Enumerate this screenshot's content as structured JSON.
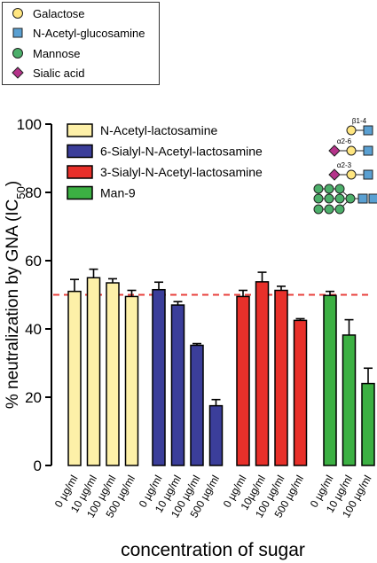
{
  "symbol_legend": [
    {
      "label": "Galactose",
      "shape": "circle",
      "color": "#ffe680"
    },
    {
      "label": "N-Acetyl-glucosamine",
      "shape": "square",
      "color": "#5aa0d2"
    },
    {
      "label": "Mannose",
      "shape": "circle",
      "color": "#4caf6a"
    },
    {
      "label": "Sialic acid",
      "shape": "diamond",
      "color": "#b5338a"
    }
  ],
  "glycan_labels": [
    "β1-4",
    "α2-6",
    "α2-3"
  ],
  "chart_data": {
    "type": "bar",
    "ylabel": "% neutralization by GNA (IC50)",
    "xlabel": "concentration of sugar",
    "ylim": [
      0,
      100
    ],
    "yticks": [
      0,
      20,
      40,
      60,
      80,
      100
    ],
    "reference_line": {
      "y": 50,
      "color": "#e8403c",
      "style": "dashed"
    },
    "series": [
      {
        "name": "N-Acetyl-lactosamine",
        "color": "#fdf0a8",
        "categories": [
          "0 µg/ml",
          "10 µg/ml",
          "100 µg/ml",
          "500 µg/ml"
        ],
        "values": [
          51,
          55,
          53.5,
          49.5
        ],
        "errors": [
          3.5,
          2.5,
          1.2,
          1.8
        ]
      },
      {
        "name": "6-Sialyl-N-Acetyl-lactosamine",
        "color": "#3b3e9a",
        "categories": [
          "0 µg/ml",
          "10 µg/ml",
          "100 µg/ml",
          "500 µg/ml"
        ],
        "values": [
          51.5,
          47,
          35.2,
          17.5
        ],
        "errors": [
          2.2,
          1,
          0.5,
          1.8
        ]
      },
      {
        "name": "3-Sialyl-N-Acetyl-lactosamine",
        "color": "#e8302a",
        "categories": [
          "0 µg/ml",
          "10µg/ml",
          "100 µg/ml",
          "500 µg/ml"
        ],
        "values": [
          49.5,
          53.8,
          51.3,
          42.5
        ],
        "errors": [
          1.8,
          2.8,
          1.2,
          0.5
        ]
      },
      {
        "name": "Man-9",
        "color": "#3cb043",
        "categories": [
          "0 µg/ml",
          "10 µg/ml",
          "100 µg/ml"
        ],
        "values": [
          49.8,
          38.2,
          24
        ],
        "errors": [
          1.2,
          4.5,
          4.5
        ]
      }
    ]
  }
}
